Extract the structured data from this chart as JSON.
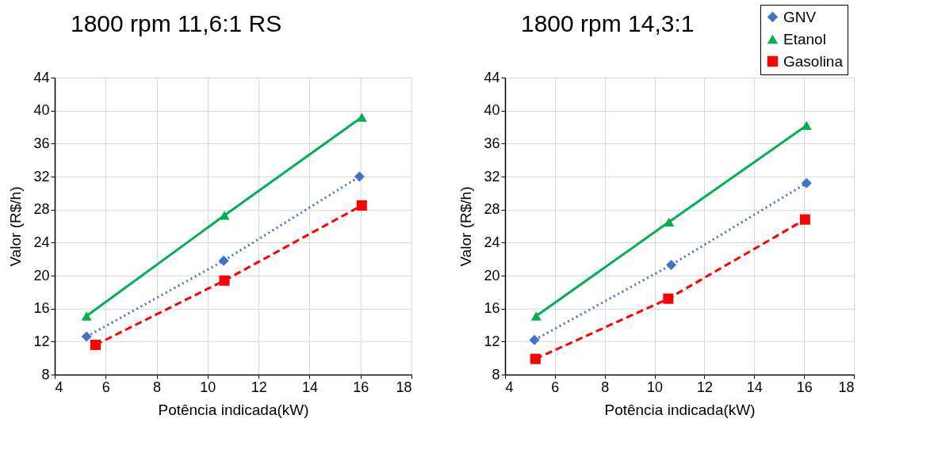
{
  "chart_data": [
    {
      "type": "line",
      "title": "1800 rpm 11,6:1 RS",
      "xlabel": "Potência indicada(kW)",
      "ylabel": "Valor (R$/h)",
      "xlim": [
        4,
        18
      ],
      "xticks": [
        4,
        6,
        8,
        10,
        12,
        14,
        16,
        18
      ],
      "ylim": [
        8,
        44
      ],
      "yticks": [
        8,
        12,
        16,
        20,
        24,
        28,
        32,
        36,
        40,
        44
      ],
      "grid": true,
      "series": [
        {
          "color": "#4472c4",
          "marker": "diamond",
          "line_style": "dotted",
          "x": [
            5.25,
            10.63,
            15.96
          ],
          "values": [
            12.6,
            21.8,
            32.0
          ]
        },
        {
          "color": "#00b050",
          "marker": "triangle",
          "line_style": "solid",
          "x": [
            5.25,
            10.66,
            16.05
          ],
          "values": [
            15.1,
            27.3,
            39.2
          ]
        },
        {
          "color": "#ff0000",
          "marker": "square",
          "line_style": "dashed",
          "x": [
            5.6,
            10.66,
            16.05
          ],
          "values": [
            11.6,
            19.4,
            28.5
          ]
        }
      ]
    },
    {
      "type": "line",
      "title": "1800 rpm 14,3:1",
      "xlabel": "Potência indicada(kW)",
      "ylabel": "Valor (R$/h)",
      "xlim": [
        4,
        18
      ],
      "xticks": [
        4,
        6,
        8,
        10,
        12,
        14,
        16,
        18
      ],
      "ylim": [
        8,
        44
      ],
      "yticks": [
        8,
        12,
        16,
        20,
        24,
        28,
        32,
        36,
        40,
        44
      ],
      "grid": true,
      "legend": "top right",
      "series": [
        {
          "name": "GNV",
          "color": "#4472c4",
          "marker": "diamond",
          "line_style": "dotted",
          "x": [
            5.18,
            10.67,
            16.1
          ],
          "values": [
            12.2,
            21.3,
            31.2
          ]
        },
        {
          "name": "Etanol",
          "color": "#00b050",
          "marker": "triangle",
          "line_style": "solid",
          "x": [
            5.25,
            10.58,
            16.1
          ],
          "values": [
            15.1,
            26.5,
            38.2
          ]
        },
        {
          "name": "Gasolina",
          "color": "#ff0000",
          "marker": "square",
          "line_style": "dashed",
          "x": [
            5.22,
            10.55,
            16.04
          ],
          "values": [
            9.9,
            17.2,
            26.8
          ]
        }
      ]
    }
  ]
}
